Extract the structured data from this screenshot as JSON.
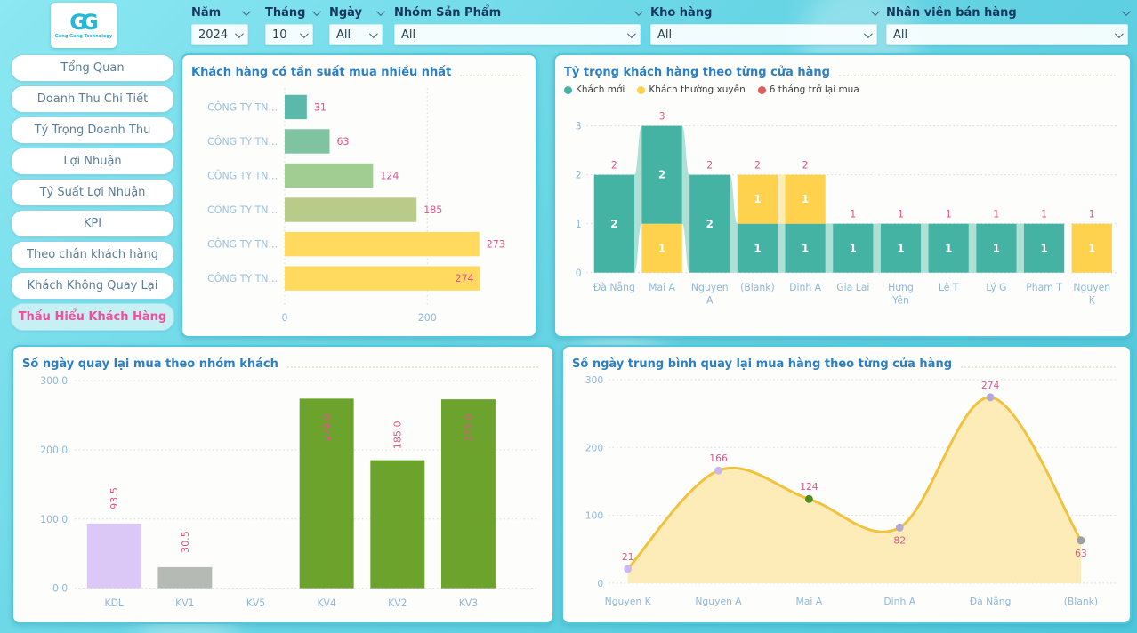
{
  "logo": {
    "mark": "GG",
    "caption": "Geng Gang Technology"
  },
  "filters": [
    {
      "key": "nam",
      "label": "Năm",
      "value": "2024"
    },
    {
      "key": "thang",
      "label": "Tháng",
      "value": "10"
    },
    {
      "key": "ngay",
      "label": "Ngày",
      "value": "All"
    },
    {
      "key": "nhom-san-pham",
      "label": "Nhóm Sản Phẩm",
      "value": "All"
    },
    {
      "key": "kho-hang",
      "label": "Kho hàng",
      "value": "All"
    },
    {
      "key": "nhan-vien-ban-hang",
      "label": "Nhân viên bán hàng",
      "value": "All"
    }
  ],
  "sidebar": {
    "items": [
      {
        "key": "tong-quan",
        "label": "Tổng Quan",
        "active": false
      },
      {
        "key": "doanh-thu-chi-tiet",
        "label": "Doanh Thu Chi Tiết",
        "active": false
      },
      {
        "key": "ty-trong-doanh-thu",
        "label": "Tỷ Trọng Doanh Thu",
        "active": false
      },
      {
        "key": "loi-nhuan",
        "label": "Lợi Nhuận",
        "active": false
      },
      {
        "key": "ty-suat-loi-nhuan",
        "label": "Tỷ Suất Lợi Nhuận",
        "active": false
      },
      {
        "key": "kpi",
        "label": "KPI",
        "active": false
      },
      {
        "key": "theo-chan-khach-hang",
        "label": "Theo chân khách hàng",
        "active": false
      },
      {
        "key": "khach-khong-quay-lai",
        "label": "Khách Không Quay Lại",
        "active": false
      },
      {
        "key": "thau-hieu-khach-hang",
        "label": "Thấu Hiểu Khách Hàng",
        "active": true
      }
    ]
  },
  "colors": {
    "accent_pink": "#e4538c",
    "title_blue": "#2b7fc2",
    "axis_blue": "#8fb8d8",
    "teal": "#45b3a4",
    "teal_light": "#9ad8cc",
    "yellow": "#ffd24d",
    "yellow_light": "#ffe9a6",
    "red": "#e05c5c",
    "green": "#6ba32d",
    "lavender": "#dcc8f7",
    "gray": "#b5bab5",
    "line_yellow": "#f2c23e",
    "area_fill": "#fdeab0",
    "card_border": "#55c7db",
    "grid": "#d4dae0"
  },
  "chart_data": [
    {
      "id": "top-frequency-customers",
      "type": "bar",
      "orientation": "horizontal",
      "title": "Khách hàng có tần suất mua nhiều nhất",
      "categories": [
        "CÔNG TY TN...",
        "CÔNG TY TN...",
        "CÔNG TY TN...",
        "CÔNG TY TN...",
        "CÔNG TY TN...",
        "CÔNG TY TN..."
      ],
      "values": [
        31,
        63,
        124,
        185,
        273,
        274
      ],
      "bar_colors": [
        "#5ab9ab",
        "#7fc3a1",
        "#a2cd92",
        "#b9cb89",
        "#ffda5e",
        "#ffda5e"
      ],
      "label_inside": [
        false,
        false,
        false,
        false,
        false,
        true
      ],
      "xticks": [
        0,
        200
      ],
      "xlim": [
        0,
        312
      ],
      "grid": true,
      "legend_position": "none"
    },
    {
      "id": "customer-share-by-store",
      "type": "ribbon",
      "title": "Tỷ trọng khách hàng theo từng cửa hàng",
      "legend": [
        {
          "name": "Khách mới",
          "color": "#45b3a4"
        },
        {
          "name": "Khách thường xuyên",
          "color": "#ffd24d"
        },
        {
          "name": "6 tháng trở lại mua",
          "color": "#e05c5c"
        }
      ],
      "legend_position": "top-left",
      "categories": [
        "Đà Nẵng",
        "Mai A",
        "Nguyen A",
        "(Blank)",
        "Dinh A",
        "Gia Lai",
        "Hưng Yên",
        "Lê T",
        "Lý G",
        "Pham T",
        "Nguyen K"
      ],
      "totals": [
        2,
        3,
        2,
        2,
        2,
        1,
        1,
        1,
        1,
        1,
        1
      ],
      "series": [
        {
          "name": "Khách mới",
          "values": [
            2,
            2,
            2,
            1,
            1,
            1,
            1,
            1,
            1,
            1,
            0
          ]
        },
        {
          "name": "Khách thường xuyên",
          "values": [
            0,
            1,
            0,
            1,
            1,
            0,
            0,
            0,
            0,
            0,
            1
          ]
        }
      ],
      "columns": [
        {
          "label": "Đà Nẵng",
          "segments": [
            {
              "series": 0,
              "y0": 0,
              "y1": 2
            }
          ]
        },
        {
          "label": "Mai A",
          "segments": [
            {
              "series": 1,
              "y0": 0,
              "y1": 1
            },
            {
              "series": 0,
              "y0": 1,
              "y1": 3
            }
          ]
        },
        {
          "label": "Nguyen A",
          "segments": [
            {
              "series": 0,
              "y0": 0,
              "y1": 2
            }
          ]
        },
        {
          "label": "(Blank)",
          "segments": [
            {
              "series": 0,
              "y0": 0,
              "y1": 1
            },
            {
              "series": 1,
              "y0": 1,
              "y1": 2
            }
          ]
        },
        {
          "label": "Dinh A",
          "segments": [
            {
              "series": 0,
              "y0": 0,
              "y1": 1
            },
            {
              "series": 1,
              "y0": 1,
              "y1": 2
            }
          ]
        },
        {
          "label": "Gia Lai",
          "segments": [
            {
              "series": 0,
              "y0": 0,
              "y1": 1
            }
          ]
        },
        {
          "label": "Hưng Yên",
          "segments": [
            {
              "series": 0,
              "y0": 0,
              "y1": 1
            }
          ]
        },
        {
          "label": "Lê T",
          "segments": [
            {
              "series": 0,
              "y0": 0,
              "y1": 1
            }
          ]
        },
        {
          "label": "Lý G",
          "segments": [
            {
              "series": 0,
              "y0": 0,
              "y1": 1
            }
          ]
        },
        {
          "label": "Pham T",
          "segments": [
            {
              "series": 0,
              "y0": 0,
              "y1": 1
            }
          ]
        },
        {
          "label": "Nguyen K",
          "segments": [
            {
              "series": 1,
              "y0": 0,
              "y1": 1
            }
          ]
        }
      ],
      "series_colors": [
        "#45b3a4",
        "#ffd24d"
      ],
      "ribbon_colors": [
        "#9ad8cc",
        "#ffe9a6"
      ],
      "yticks": [
        0,
        1,
        2,
        3
      ],
      "ylim": [
        0,
        3
      ],
      "grid": true
    },
    {
      "id": "return-days-by-group",
      "type": "bar",
      "orientation": "vertical",
      "title": "Số ngày quay lại mua theo nhóm khách",
      "categories": [
        "KDL",
        "KV1",
        "KV5",
        "KV4",
        "KV2",
        "KV3"
      ],
      "values": [
        93.5,
        30.5,
        null,
        274.0,
        185.0,
        273.0
      ],
      "value_labels": [
        "93.5",
        "30.5",
        "",
        "274.0",
        "185.0",
        "273.0"
      ],
      "bar_colors": [
        "#dcc8f7",
        "#b5bab5",
        null,
        "#6ba32d",
        "#6ba32d",
        "#6ba32d"
      ],
      "label_inside": [
        false,
        false,
        false,
        true,
        false,
        true
      ],
      "yticks": [
        "0.0",
        "100.0",
        "200.0",
        "300.0"
      ],
      "ylim": [
        0,
        300
      ],
      "grid": true,
      "legend_position": "none"
    },
    {
      "id": "avg-return-days-by-store",
      "type": "area",
      "title": "Số ngày trung bình quay lại mua hàng theo từng cửa hàng",
      "categories": [
        "Nguyen K",
        "Nguyen A",
        "Mai A",
        "Dinh A",
        "Đà Nẵng",
        "(Blank)"
      ],
      "values": [
        21,
        166,
        124,
        82,
        274,
        63
      ],
      "value_labels": [
        "21",
        "166",
        "124",
        "82",
        "274",
        "63"
      ],
      "label_position": [
        "above",
        "above",
        "above",
        "below",
        "above",
        "below"
      ],
      "marker_colors": [
        "#cbb8f0",
        "#c7b9e8",
        "#4e8c1e",
        "#b2a9d4",
        "#b2a9d4",
        "#9aa0a6"
      ],
      "line_color": "#f2c23e",
      "fill_color": "#fdeab0",
      "yticks": [
        0,
        100,
        200,
        300
      ],
      "ylim": [
        0,
        300
      ],
      "grid": true,
      "legend_position": "none"
    }
  ]
}
